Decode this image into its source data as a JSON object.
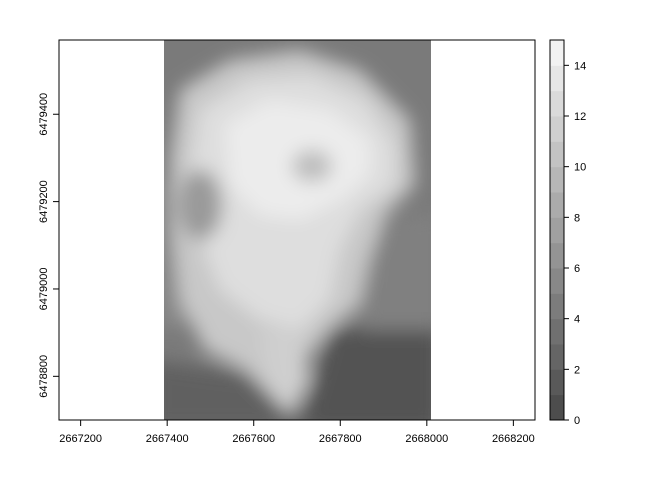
{
  "map": {
    "x_ticks": [
      "2667200",
      "2667400",
      "2667600",
      "2667800",
      "2668000",
      "2668200"
    ],
    "y_ticks": [
      "6478800",
      "6479000",
      "6479200",
      "6479400"
    ],
    "x_tick_values": [
      2667200,
      2667400,
      2667600,
      2667800,
      2668000,
      2668200
    ],
    "y_tick_values": [
      6478800,
      6479000,
      6479200,
      6479400
    ],
    "xlim": [
      2667150,
      2668250
    ],
    "ylim": [
      6478700,
      6479570
    ],
    "raster_extent": {
      "xmin": 2667400,
      "xmax": 2668010,
      "ymin": 6478700,
      "ymax": 6479570
    },
    "colors": {
      "low": "#4d4d4d",
      "high": "#f2f2f2"
    }
  },
  "legend": {
    "ticks": [
      "0",
      "2",
      "4",
      "6",
      "8",
      "10",
      "12",
      "14"
    ],
    "tick_values": [
      0,
      2,
      4,
      6,
      8,
      10,
      12,
      14
    ],
    "range": [
      0,
      15
    ],
    "n_bins": 15
  }
}
